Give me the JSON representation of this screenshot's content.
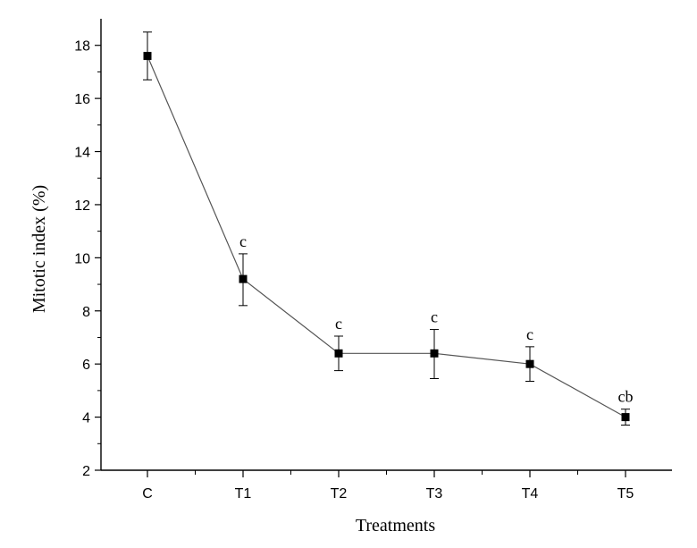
{
  "chart_data": {
    "type": "line",
    "title": "",
    "xlabel": "Treatments",
    "ylabel": "Mitotic index (%)",
    "ylim": [
      2,
      19
    ],
    "yticks": [
      2,
      4,
      6,
      8,
      10,
      12,
      14,
      16,
      18
    ],
    "categories": [
      "C",
      "T1",
      "T2",
      "T3",
      "T4",
      "T5"
    ],
    "values": [
      17.6,
      9.2,
      6.4,
      6.4,
      6.0,
      4.0
    ],
    "error_low": [
      16.7,
      8.2,
      5.75,
      5.45,
      5.35,
      3.7
    ],
    "error_high": [
      18.5,
      10.15,
      7.05,
      7.3,
      6.65,
      4.3
    ],
    "annotations": [
      "",
      "c",
      "c",
      "c",
      "c",
      "cb"
    ],
    "grid": false,
    "legend": "none",
    "colors": {
      "line": "#555555",
      "marker": "#000000",
      "axis": "#000000"
    }
  }
}
